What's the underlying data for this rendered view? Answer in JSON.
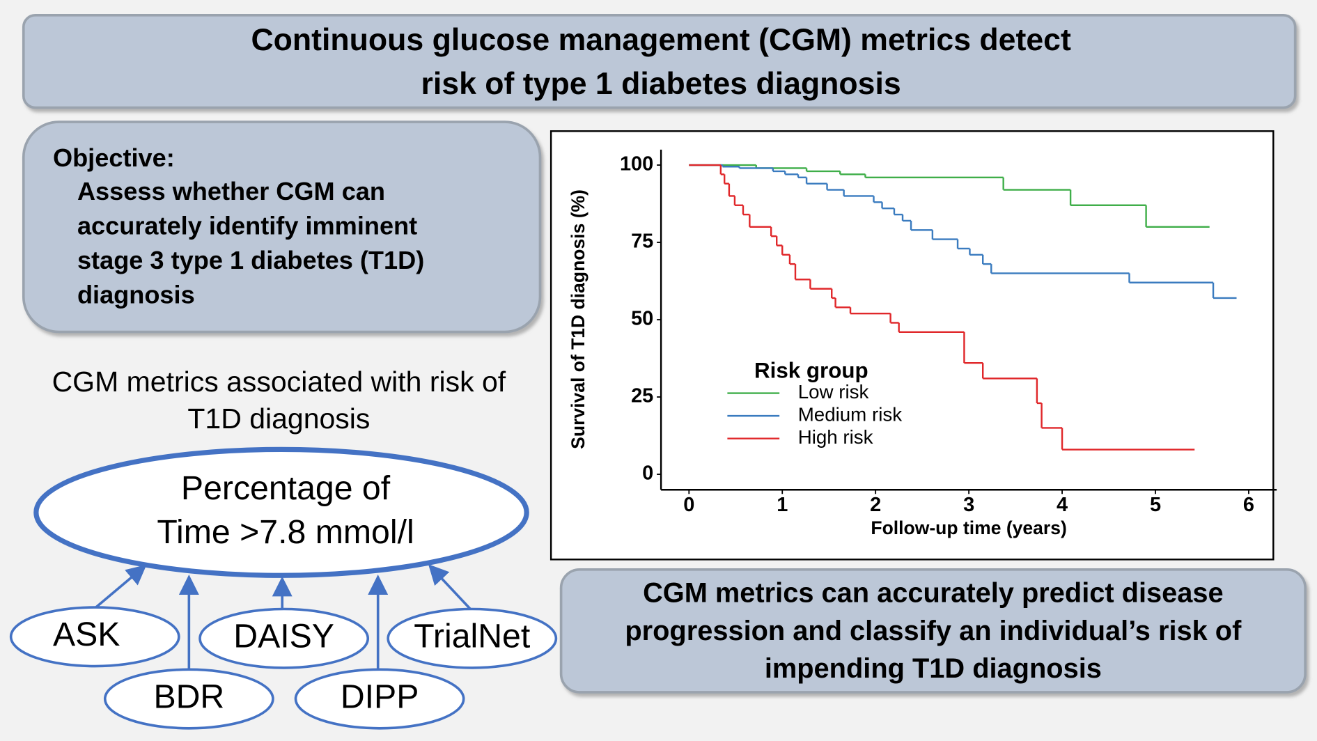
{
  "header": {
    "title_lines": [
      "Continuous glucose management (CGM) metrics detect",
      "risk of type 1 diabetes diagnosis"
    ]
  },
  "objective": {
    "heading": "Objective:",
    "lines": [
      "Assess whether CGM can",
      "accurately identify imminent",
      "stage 3 type 1 diabetes (T1D)",
      "diagnosis"
    ]
  },
  "association": {
    "lines": [
      "CGM metrics associated with risk of",
      "T1D diagnosis"
    ]
  },
  "outcome": {
    "lines": [
      "Percentage of",
      "Time >7.8 mmol/l"
    ]
  },
  "studies": [
    "ASK",
    "DAISY",
    "TrialNet",
    "BDR",
    "DIPP"
  ],
  "chart_data": {
    "type": "step",
    "x_label": "Follow-up time (years)",
    "y_label": "Survival of T1D diagnosis (%)",
    "xlim": [
      -0.3,
      6.3
    ],
    "ylim": [
      -5,
      105
    ],
    "xticks": [
      0,
      1,
      2,
      3,
      4,
      5,
      6
    ],
    "yticks": [
      0,
      25,
      50,
      75,
      100
    ],
    "legend_title": "Risk group",
    "legend_position": "lower-left",
    "series": [
      {
        "name": "Low risk",
        "color": "#3fae49",
        "x": [
          0,
          0.72,
          1.26,
          1.62,
          1.89,
          3.37,
          4.09,
          4.9,
          5.58
        ],
        "values": [
          100,
          99,
          98,
          97,
          96,
          92,
          87,
          80,
          80
        ]
      },
      {
        "name": "Medium risk",
        "color": "#3a7bbf",
        "x": [
          0,
          0.36,
          0.54,
          0.9,
          1.03,
          1.17,
          1.26,
          1.48,
          1.66,
          1.98,
          2.07,
          2.2,
          2.29,
          2.38,
          2.61,
          2.88,
          3.01,
          3.15,
          3.24,
          4.72,
          5.62,
          5.87
        ],
        "values": [
          100,
          99.5,
          99,
          98,
          97,
          96,
          94,
          92,
          90,
          88,
          86,
          84,
          82,
          79,
          76,
          73,
          71,
          68,
          65,
          62,
          57,
          57
        ]
      },
      {
        "name": "High risk",
        "color": "#e0272a",
        "x": [
          0,
          0.34,
          0.38,
          0.43,
          0.49,
          0.58,
          0.65,
          0.88,
          0.94,
          1.0,
          1.08,
          1.14,
          1.3,
          1.53,
          1.57,
          1.73,
          2.16,
          2.25,
          2.95,
          3.15,
          3.73,
          3.78,
          4.0,
          5.42
        ],
        "values": [
          100,
          97,
          94,
          90,
          87,
          84,
          80,
          77,
          74,
          71,
          68,
          63,
          60,
          57,
          54,
          52,
          49,
          46,
          36,
          31,
          23,
          15,
          8,
          8
        ]
      }
    ]
  },
  "conclusion": {
    "lines": [
      "CGM metrics can accurately predict disease",
      "progression and classify an individual’s risk of",
      "impending T1D diagnosis"
    ]
  }
}
